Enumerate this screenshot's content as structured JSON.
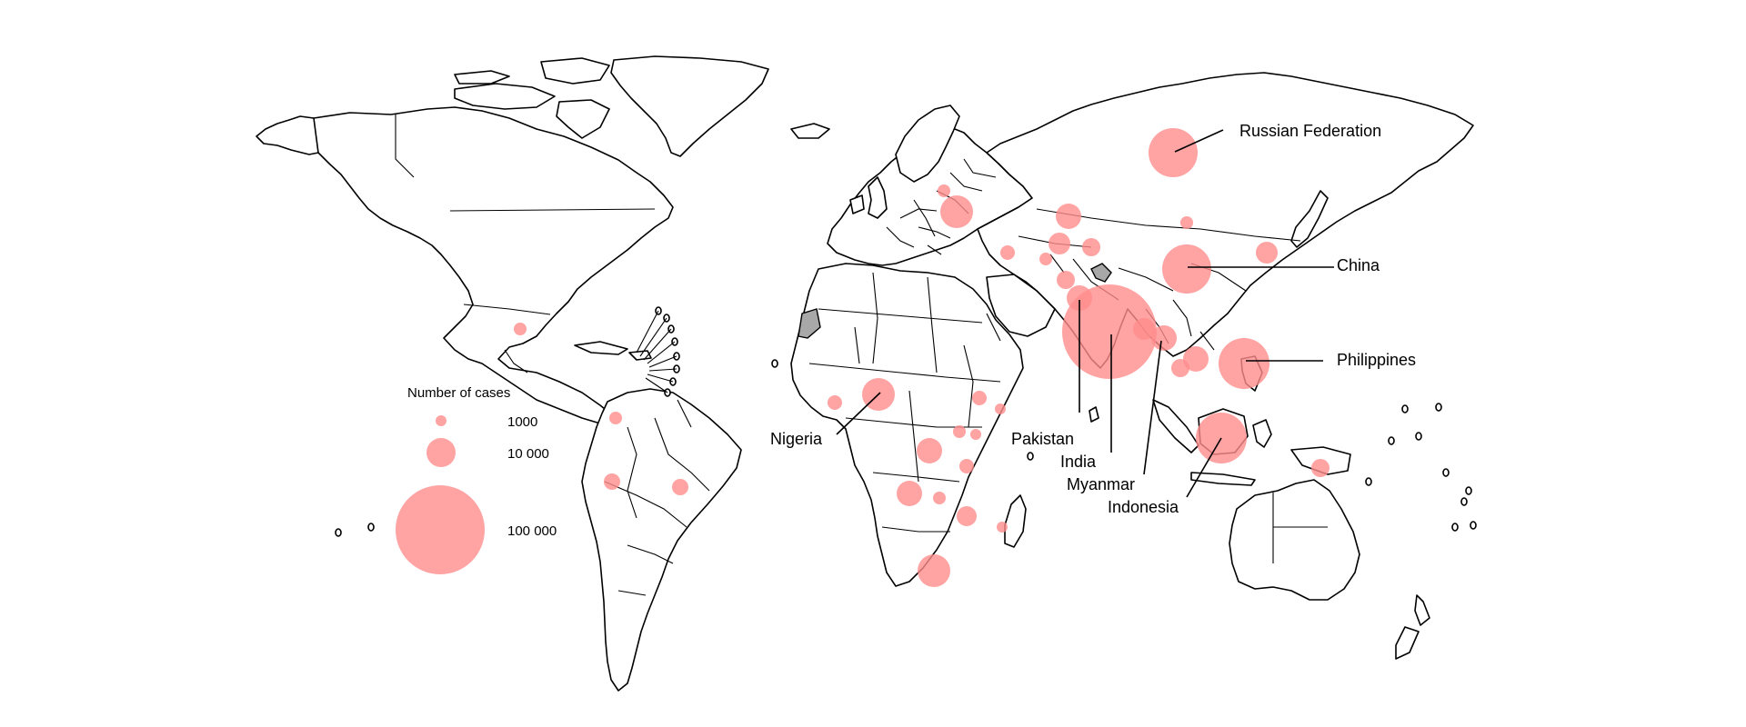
{
  "legend": {
    "title": "Number of cases",
    "items": [
      {
        "label": "1000",
        "value": 1000
      },
      {
        "label": "10 000",
        "value": 10000
      },
      {
        "label": "100 000",
        "value": 100000
      }
    ]
  },
  "labels": {
    "russia": "Russian Federation",
    "china": "China",
    "philippines": "Philippines",
    "nigeria": "Nigeria",
    "pakistan": "Pakistan",
    "india": "India",
    "myanmar": "Myanmar",
    "indonesia": "Indonesia"
  },
  "colors": {
    "bubble": "#ff8c8c",
    "outline": "#000000",
    "no_data": "#a8a8a8"
  }
}
